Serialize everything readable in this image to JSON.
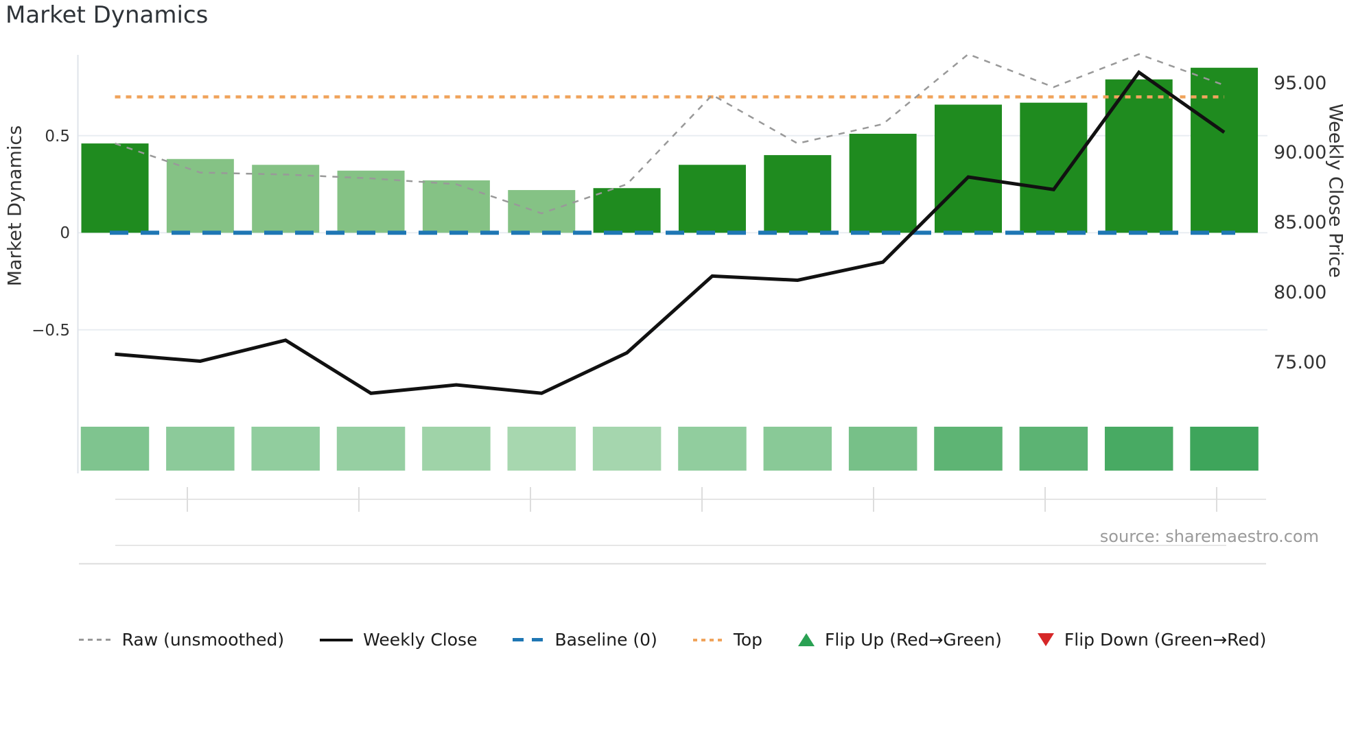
{
  "title": "Market Dynamics",
  "source": "source: sharemaestro.com",
  "axes": {
    "left": {
      "label": "Market Dynamics",
      "ticks": [
        "0.5",
        "0",
        "−0.5"
      ],
      "tick_values": [
        0.5,
        0,
        -0.5
      ],
      "range": [
        -1.12,
        1.0
      ]
    },
    "right": {
      "label": "Weekly Close Price",
      "ticks": [
        "95.00",
        "90.00",
        "85.00",
        "80.00",
        "75.00"
      ],
      "tick_values": [
        95,
        90,
        85,
        80,
        75
      ],
      "range": [
        68.7,
        98.2
      ]
    },
    "x_tick_labels": []
  },
  "legend": [
    {
      "label": "Raw (unsmoothed)",
      "marker": "gray-dashed-line"
    },
    {
      "label": "Weekly Close",
      "marker": "black-solid-line"
    },
    {
      "label": "Baseline (0)",
      "marker": "blue-dashed-line"
    },
    {
      "label": "Top",
      "marker": "orange-dotted-line"
    },
    {
      "label": "Flip Up (Red→Green)",
      "marker": "green-up-triangle"
    },
    {
      "label": "Flip Down (Green→Red)",
      "marker": "red-down-triangle"
    }
  ],
  "colors": {
    "bar_dark": "#1f8b1f",
    "bar_light": "#85c285",
    "raw_line": "#999999",
    "weekly_close_line": "#111111",
    "baseline_line": "#1f77b4",
    "top_line": "#f0a45c",
    "grid": "#e9edf2",
    "axis_line": "#dfe3ea",
    "bottom_rule": "#dddddd",
    "flip_up": "#2aa153",
    "flip_down": "#d62728",
    "text": "#333333",
    "muted_text": "#9a9a9a"
  },
  "chart_data": {
    "type": "bar",
    "combo": "bar + two lines + two horizontal reference lines + heat strip",
    "n_points": 14,
    "x": [
      1,
      2,
      3,
      4,
      5,
      6,
      7,
      8,
      9,
      10,
      11,
      12,
      13,
      14
    ],
    "title": "Market Dynamics",
    "ylabel_left": "Market Dynamics",
    "ylabel_right": "Weekly Close Price",
    "grid": "horizontal gridlines at left-axis ticks only",
    "legend_position": "bottom center",
    "series": [
      {
        "name": "Market Dynamics (bars)",
        "type": "bar",
        "axis": "left",
        "values": [
          0.46,
          0.38,
          0.35,
          0.32,
          0.27,
          0.22,
          0.23,
          0.35,
          0.4,
          0.51,
          0.66,
          0.67,
          0.79,
          0.85
        ],
        "bar_styles": [
          "dark",
          "light",
          "light",
          "light",
          "light",
          "light",
          "dark",
          "dark",
          "dark",
          "dark",
          "dark",
          "dark",
          "dark",
          "dark"
        ]
      },
      {
        "name": "Raw (unsmoothed)",
        "type": "line",
        "style": "dashed",
        "axis": "left",
        "values": [
          0.46,
          0.31,
          0.3,
          0.28,
          0.25,
          0.1,
          0.25,
          0.71,
          0.46,
          0.56,
          0.92,
          0.75,
          0.92,
          0.76
        ]
      },
      {
        "name": "Weekly Close",
        "type": "line",
        "style": "solid",
        "axis": "right",
        "values": [
          75.6,
          75.1,
          76.6,
          72.8,
          73.4,
          72.8,
          75.7,
          81.2,
          80.9,
          82.2,
          88.3,
          87.4,
          95.8,
          91.5
        ]
      },
      {
        "name": "Baseline (0)",
        "type": "hline",
        "style": "dashed",
        "axis": "left",
        "value": 0
      },
      {
        "name": "Top",
        "type": "hline",
        "style": "dotted",
        "axis": "left",
        "value": 0.7
      }
    ],
    "heat_strip": {
      "description": "one colored cell per week below the plot, light to dark green tracking bar values",
      "colors": [
        "#7fc48f",
        "#8cca9a",
        "#91cd9e",
        "#96cfa2",
        "#9fd3a8",
        "#a7d7af",
        "#a5d6ae",
        "#91cd9e",
        "#89c997",
        "#77c088",
        "#5eb474",
        "#5cb373",
        "#48aa63",
        "#3ea55b"
      ]
    },
    "flip_markers": {
      "up": [],
      "down": []
    }
  }
}
